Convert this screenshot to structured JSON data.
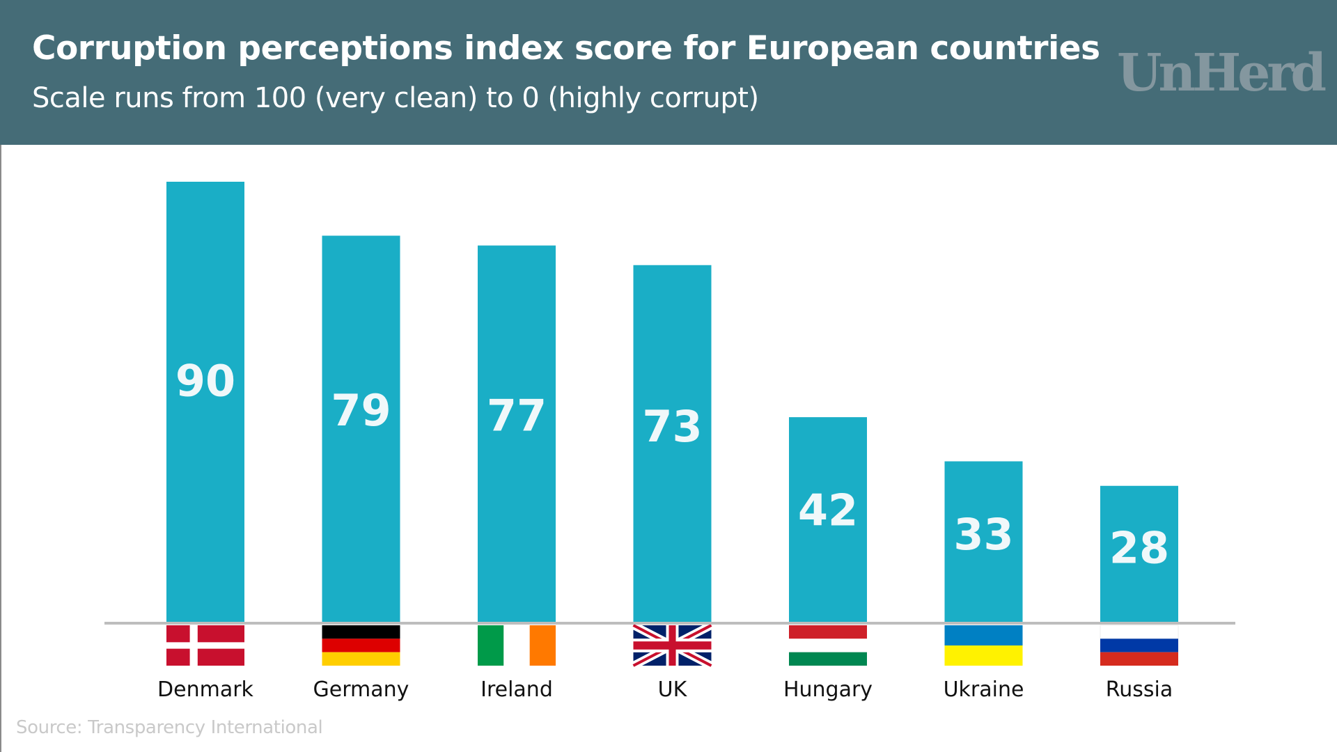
{
  "header": {
    "title": "Corruption perceptions index score for European countries",
    "subtitle": "Scale runs from 100 (very clean) to 0 (highly corrupt)",
    "logo": "UnHerd"
  },
  "footer": {
    "source": "Source: Transparency International"
  },
  "colors": {
    "header_bg": "#456c77",
    "bar": "#1aaec6",
    "axis": "#bdbdbd",
    "value_label": "#f0f8fa"
  },
  "chart_data": {
    "type": "bar",
    "title": "Corruption perceptions index score for European countries",
    "subtitle": "Scale runs from 100 (very clean) to 0 (highly corrupt)",
    "xlabel": "",
    "ylabel": "",
    "ylim": [
      0,
      100
    ],
    "grid": false,
    "legend": "none",
    "categories": [
      "Denmark",
      "Germany",
      "Ireland",
      "UK",
      "Hungary",
      "Ukraine",
      "Russia"
    ],
    "values": [
      90,
      79,
      77,
      73,
      42,
      33,
      28
    ],
    "data_labels": [
      "90",
      "79",
      "77",
      "73",
      "42",
      "33",
      "28"
    ],
    "flags": [
      "denmark-flag",
      "germany-flag",
      "ireland-flag",
      "uk-flag",
      "hungary-flag",
      "ukraine-flag",
      "russia-flag"
    ]
  }
}
